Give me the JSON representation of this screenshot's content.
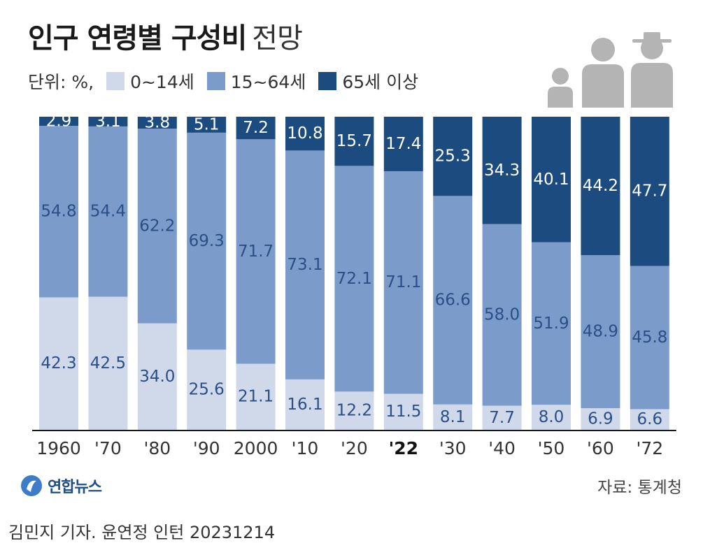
{
  "header": {
    "title_main": "인구 연령별 구성비",
    "title_sub": "전망",
    "unit_label": "단위: %,"
  },
  "colors": {
    "age_0_14": "#d0d9ea",
    "age_15_64": "#7b9bcb",
    "age_65_plus": "#1c4b7f",
    "label_dark": "#2a4f86",
    "label_light": "#ffffff",
    "axis": "#1a1a1a",
    "icon_gray": "#b4b4b4"
  },
  "chart_data": {
    "type": "bar",
    "stacked": true,
    "title": "인구 연령별 구성비 전망",
    "unit": "%",
    "categories": [
      "1960",
      "'70",
      "'80",
      "'90",
      "2000",
      "'10",
      "'20",
      "'22",
      "'30",
      "'40",
      "'50",
      "'60",
      "'72"
    ],
    "highlight_category": "'22",
    "ylim": [
      0,
      100
    ],
    "grid": false,
    "legend_position": "top-left",
    "series": [
      {
        "name": "0~14세",
        "values": [
          42.3,
          42.5,
          34.0,
          25.6,
          21.1,
          16.1,
          12.2,
          11.5,
          8.1,
          7.7,
          8.0,
          6.9,
          6.6
        ]
      },
      {
        "name": "15~64세",
        "values": [
          54.8,
          54.4,
          62.2,
          69.3,
          71.7,
          73.1,
          72.1,
          71.1,
          66.6,
          58.0,
          51.9,
          48.9,
          45.8
        ]
      },
      {
        "name": "65세 이상",
        "values": [
          2.9,
          3.1,
          3.8,
          5.1,
          7.2,
          10.8,
          15.7,
          17.4,
          25.3,
          34.3,
          40.1,
          44.2,
          47.7
        ]
      }
    ]
  },
  "footer": {
    "logo_text": "연합뉴스",
    "source": "자료: 통계청",
    "byline": "김민지 기자. 윤연정 인턴  20231214"
  },
  "icons": {
    "people": "people-group-icon",
    "logo": "yonhap-logo-icon"
  }
}
